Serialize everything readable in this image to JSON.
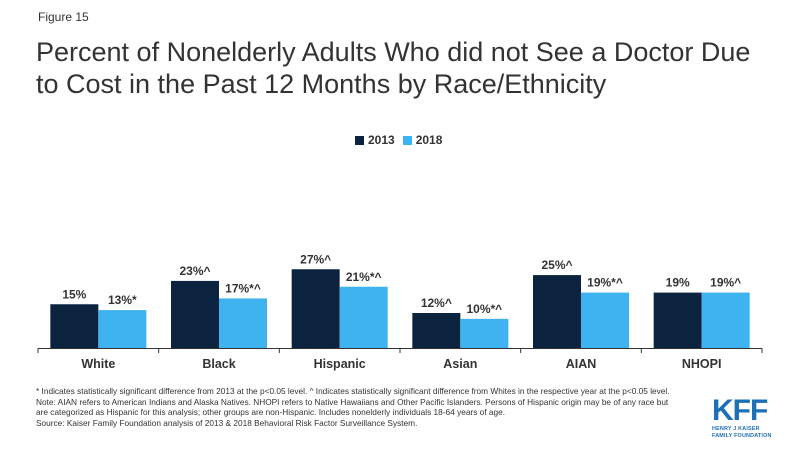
{
  "figure_label": "Figure 15",
  "title": "Percent of Nonelderly Adults Who did not See a Doctor Due to Cost in the Past 12 Months by Race/Ethnicity",
  "colors": {
    "series_2013": "#0c2340",
    "series_2018": "#3fb2f0",
    "axis": "#333333",
    "text": "#333333",
    "logo": "#1d70b8"
  },
  "chart_data": {
    "type": "bar",
    "categories": [
      "White",
      "Black",
      "Hispanic",
      "Asian",
      "AIAN",
      "NHOPI"
    ],
    "series": [
      {
        "name": "2013",
        "values": [
          15,
          23,
          27,
          12,
          25,
          19
        ],
        "labels": [
          "15%",
          "23%^",
          "27%^",
          "12%^",
          "25%^",
          "19%"
        ]
      },
      {
        "name": "2018",
        "values": [
          13,
          17,
          21,
          10,
          19,
          19
        ],
        "labels": [
          "13%*",
          "17%*^",
          "21%*^",
          "10%*^",
          "19%*^",
          "19%^"
        ]
      }
    ],
    "ylim": [
      0,
      60
    ],
    "grid": false,
    "legend_position": "top-center"
  },
  "footnotes": [
    "* Indicates statistically significant difference from 2013 at the p<0.05 level. ^ Indicates statistically significant difference from Whites in the respective year at the p<0.05 level.",
    "Note: AIAN  refers to American Indians and Alaska Natives. NHOPI  refers to Native Hawaiians  and Other Pacific Islanders. Persons of Hispanic origin may be of any race but are categorized as Hispanic for this analysis; other groups are non-Hispanic. Includes nonelderly individuals 18-64 years of age.",
    "Source: Kaiser Family Foundation analysis of 2013 & 2018 Behavioral Risk Factor Surveillance System."
  ],
  "logo": {
    "mark": "KFF",
    "line1": "HENRY J KAISER",
    "line2": "FAMILY FOUNDATION"
  }
}
